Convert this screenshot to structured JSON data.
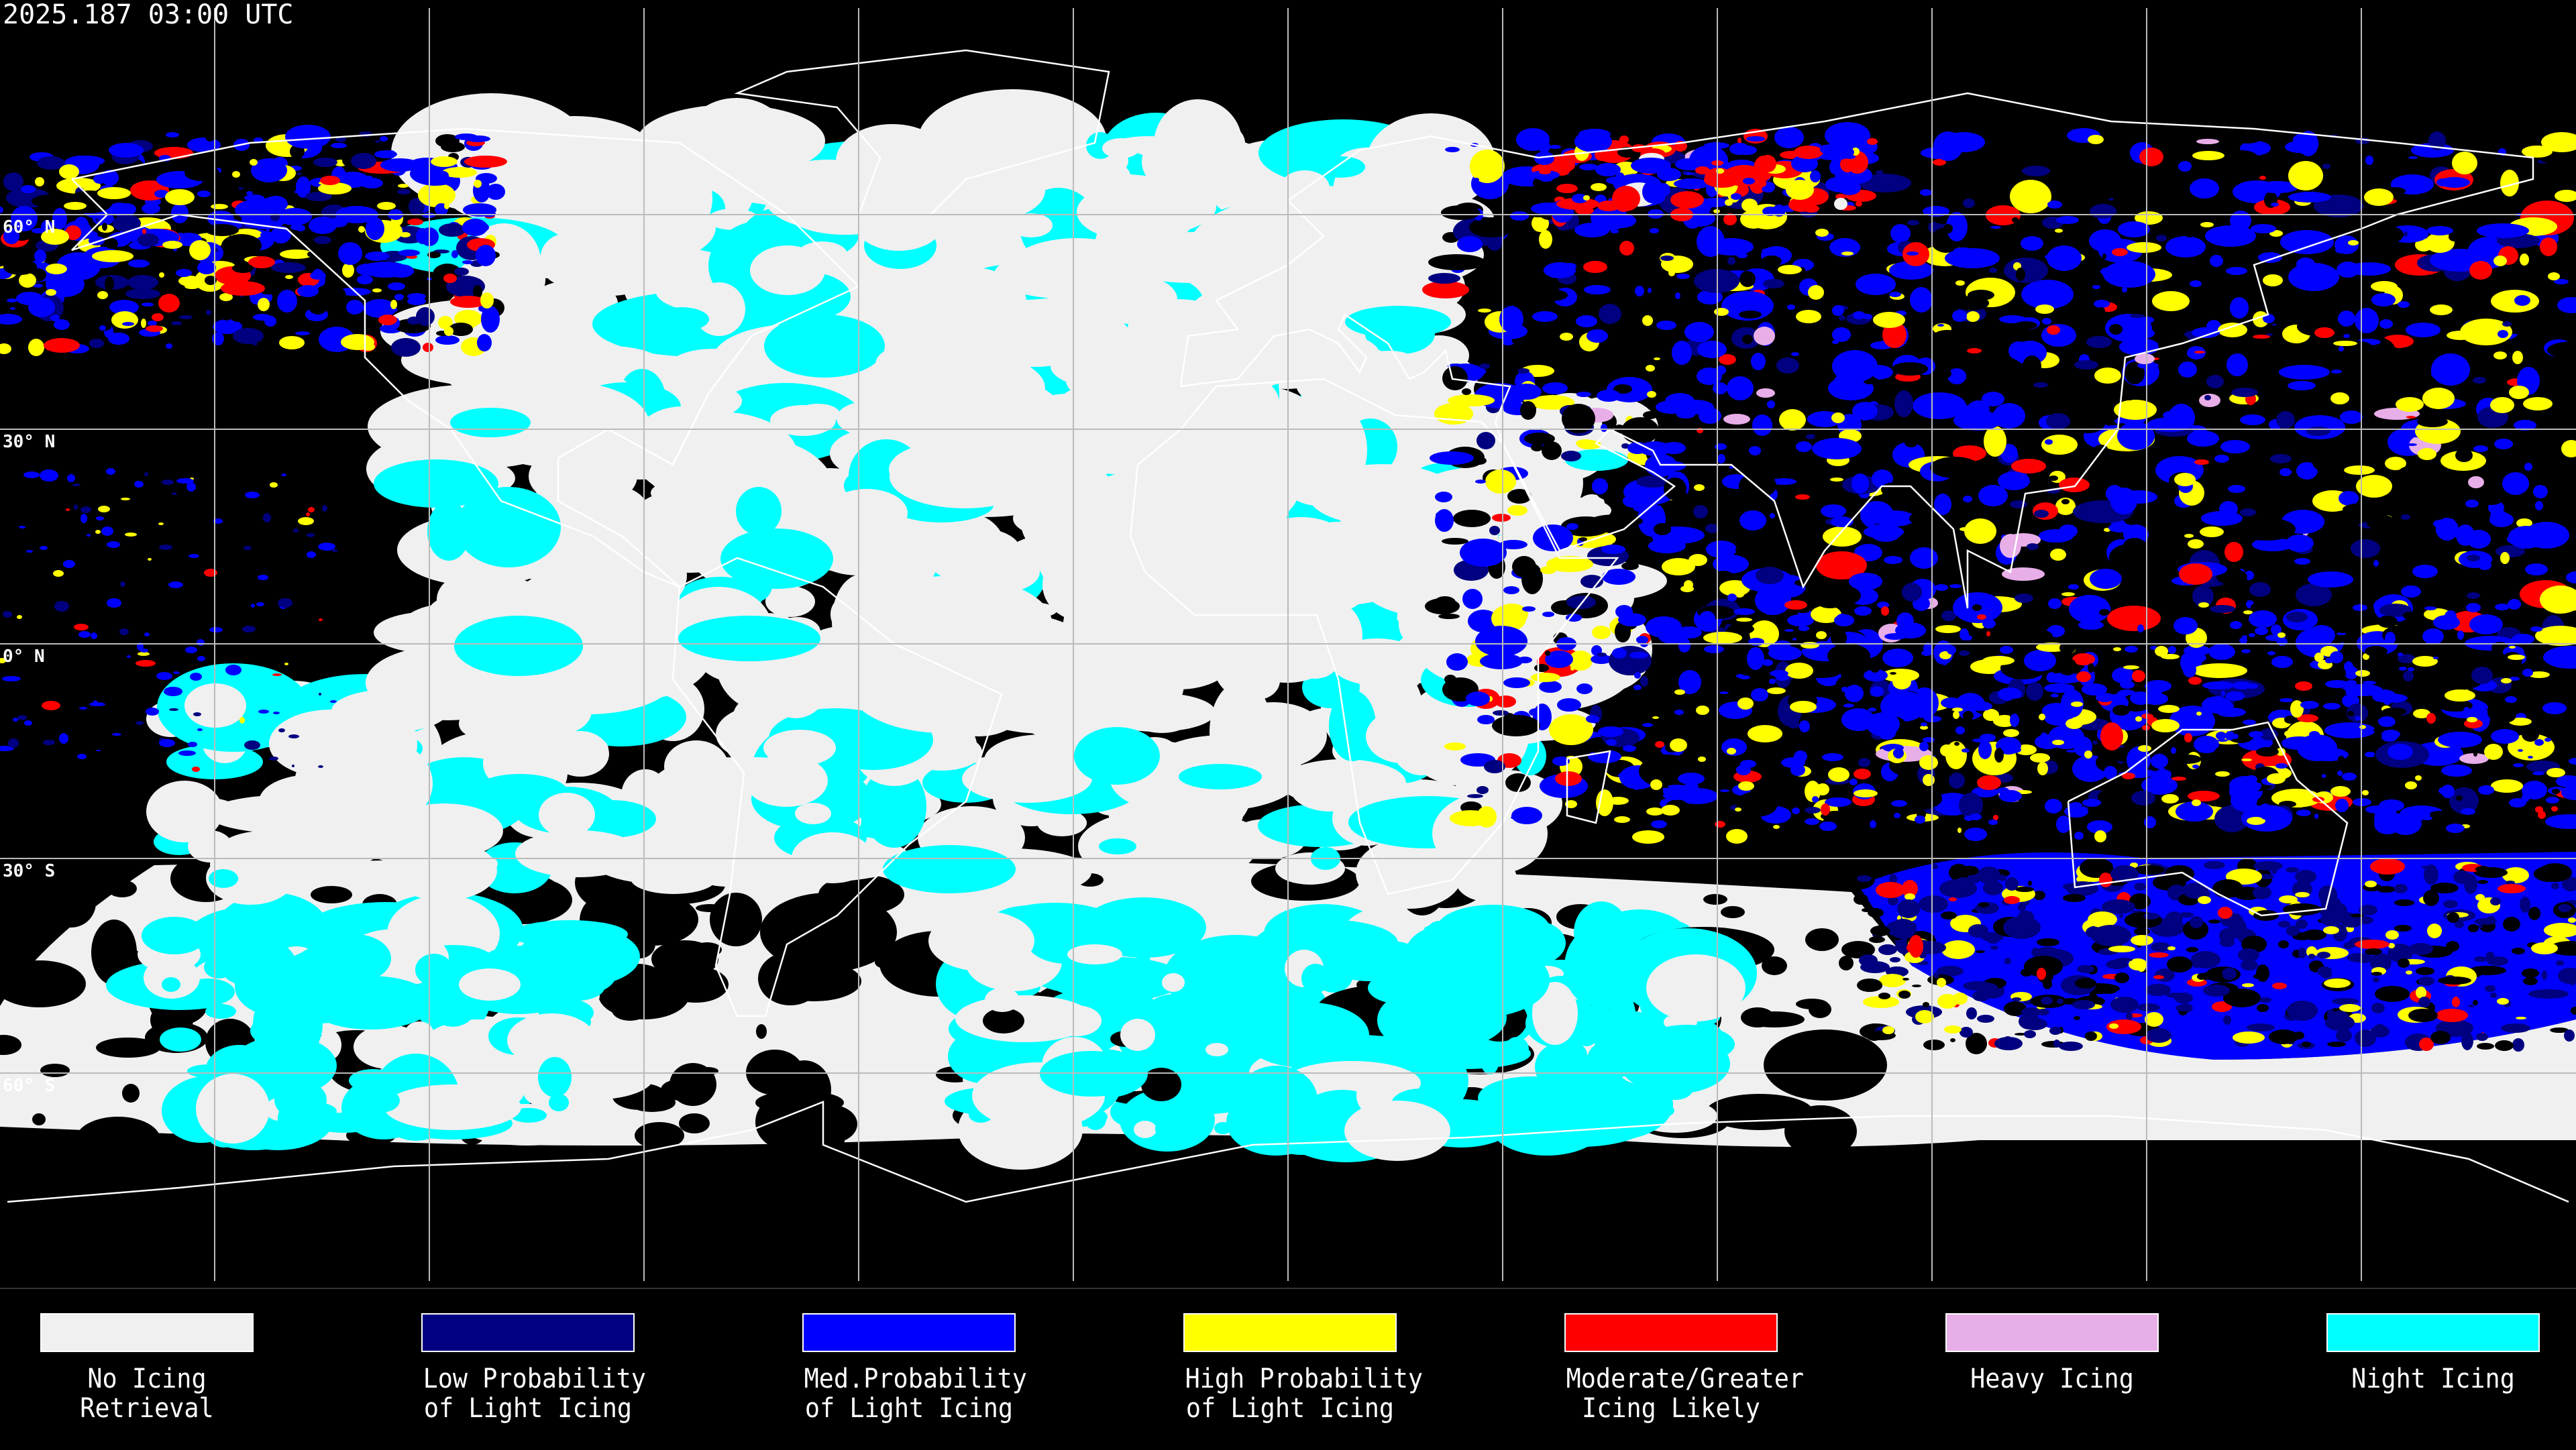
{
  "header": {
    "timestamp": "2025.187 03:00 UTC"
  },
  "map": {
    "latitude_labels": [
      "60° N",
      "30° N",
      "0° N",
      "30° S",
      "60° S"
    ],
    "grid": true,
    "projection": "equirectangular"
  },
  "legend": {
    "items": [
      {
        "line1": "No Icing",
        "line2": "Retrieval",
        "color": "#f0f0f0"
      },
      {
        "line1": "Low Probability",
        "line2": "of Light Icing",
        "color": "#000080"
      },
      {
        "line1": "Med.Probability",
        "line2": "of Light Icing",
        "color": "#0000ff"
      },
      {
        "line1": "High Probability",
        "line2": "of Light Icing",
        "color": "#ffff00"
      },
      {
        "line1": "Moderate/Greater",
        "line2": "Icing Likely",
        "color": "#ff0000"
      },
      {
        "line1": "Heavy Icing",
        "line2": "",
        "color": "#e8aee8"
      },
      {
        "line1": "Night Icing",
        "line2": "",
        "color": "#00ffff"
      }
    ]
  }
}
